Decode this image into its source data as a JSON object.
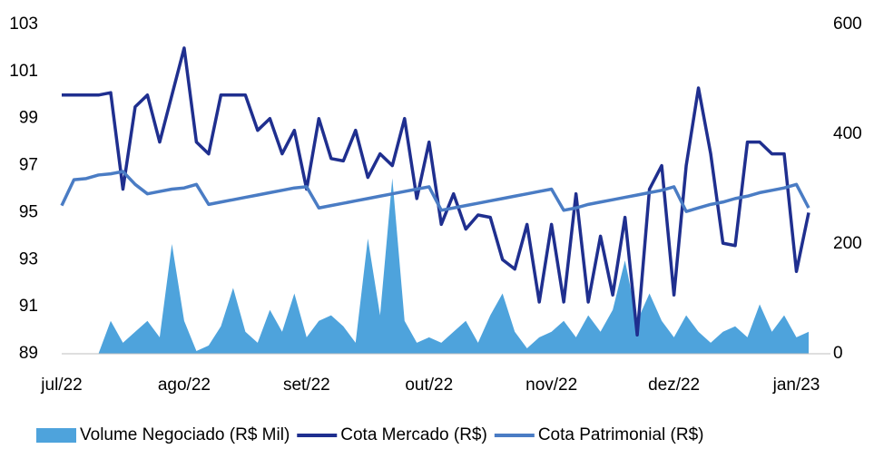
{
  "chart_data": {
    "type": "combo",
    "categories": [
      "jul/22",
      null,
      null,
      null,
      null,
      null,
      null,
      null,
      null,
      null,
      "ago/22",
      null,
      null,
      null,
      null,
      null,
      null,
      null,
      null,
      null,
      "set/22",
      null,
      null,
      null,
      null,
      null,
      null,
      null,
      null,
      null,
      "out/22",
      null,
      null,
      null,
      null,
      null,
      null,
      null,
      null,
      null,
      "nov/22",
      null,
      null,
      null,
      null,
      null,
      null,
      null,
      null,
      null,
      "dez/22",
      null,
      null,
      null,
      null,
      null,
      null,
      null,
      null,
      null,
      "jan/23",
      null
    ],
    "series": [
      {
        "name": "Volume Negociado (R$ Mil)",
        "kind": "area",
        "axis": "y2",
        "color": "#4ea3dc",
        "values": [
          0,
          0,
          0,
          0,
          60,
          20,
          40,
          60,
          30,
          200,
          60,
          5,
          15,
          50,
          120,
          40,
          20,
          80,
          40,
          110,
          30,
          60,
          70,
          50,
          20,
          210,
          70,
          320,
          60,
          20,
          30,
          20,
          40,
          60,
          20,
          70,
          110,
          40,
          10,
          30,
          40,
          60,
          30,
          70,
          40,
          80,
          170,
          60,
          110,
          60,
          30,
          70,
          40,
          20,
          40,
          50,
          30,
          90,
          40,
          70,
          30,
          40
        ]
      },
      {
        "name": "Cota Mercado (R$)",
        "kind": "line",
        "color": "#1f2f8f",
        "values": [
          100,
          100,
          100,
          100,
          100.1,
          96,
          99.5,
          100,
          98,
          100,
          102,
          98,
          97.5,
          100,
          100,
          100,
          98.5,
          99,
          97.5,
          98.5,
          96,
          99,
          97.3,
          97.2,
          98.5,
          96.5,
          97.5,
          97,
          99,
          95.6,
          98,
          94.5,
          95.8,
          94.3,
          94.9,
          94.8,
          93,
          92.6,
          94.5,
          91.2,
          94.5,
          91.2,
          95.8,
          91.2,
          94,
          91.5,
          94.8,
          89.8,
          96,
          97,
          91.5,
          97,
          100.3,
          97.5,
          93.7,
          93.6,
          98,
          98,
          97.5,
          97.5,
          92.5,
          95
        ]
      },
      {
        "name": "Cota Patrimonial (R$)",
        "kind": "line",
        "color": "#4a7cc4",
        "values": [
          95.3,
          96.4,
          96.45,
          96.6,
          96.65,
          96.75,
          96.2,
          95.8,
          95.9,
          96,
          96.05,
          96.2,
          95.35,
          95.45,
          95.55,
          95.65,
          95.75,
          95.85,
          95.95,
          96.05,
          96.1,
          95.2,
          95.3,
          95.4,
          95.5,
          95.6,
          95.7,
          95.8,
          95.9,
          96,
          96.1,
          95.1,
          95.2,
          95.3,
          95.4,
          95.5,
          95.6,
          95.7,
          95.8,
          95.9,
          96,
          95.1,
          95.2,
          95.35,
          95.45,
          95.55,
          95.65,
          95.75,
          95.85,
          95.95,
          96.1,
          95.05,
          95.2,
          95.35,
          95.45,
          95.6,
          95.7,
          95.85,
          95.95,
          96.05,
          96.2,
          95.2
        ]
      }
    ],
    "ylim": [
      89,
      103
    ],
    "yticks": [
      89,
      91,
      93,
      95,
      97,
      99,
      101,
      103
    ],
    "y2lim": [
      0,
      600
    ],
    "y2ticks": [
      0,
      200,
      400,
      600
    ],
    "legend": "bottom"
  }
}
